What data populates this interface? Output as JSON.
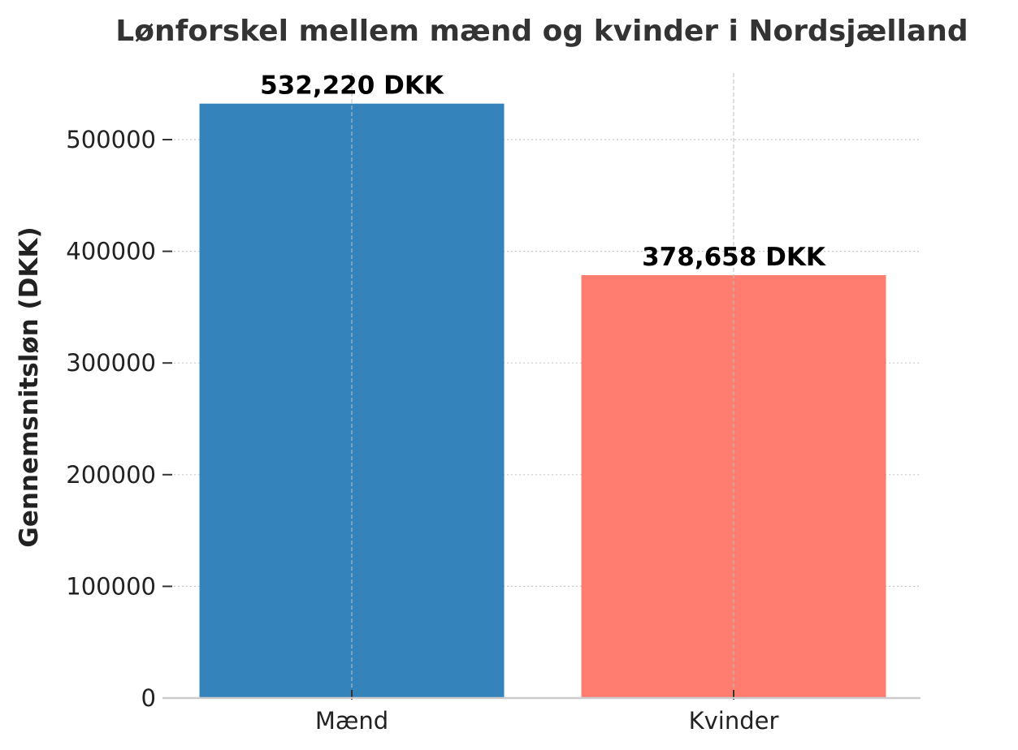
{
  "chart_data": {
    "type": "bar",
    "title": "Lønforskel mellem mænd og kvinder i Nordsjælland",
    "xlabel": "",
    "ylabel": "Gennemsnitsløn (DKK)",
    "categories": [
      "Mænd",
      "Kvinder"
    ],
    "values": [
      532220,
      378658
    ],
    "data_labels": [
      "532,220 DKK",
      "378,658 DKK"
    ],
    "colors": [
      "#3583bb",
      "#ff7c70"
    ],
    "ylim": [
      0,
      560000
    ],
    "yticks": [
      0,
      100000,
      200000,
      300000,
      400000,
      500000
    ],
    "ytick_labels": [
      "0",
      "100000",
      "200000",
      "300000",
      "400000",
      "500000"
    ],
    "grid": true,
    "legend": "none"
  }
}
